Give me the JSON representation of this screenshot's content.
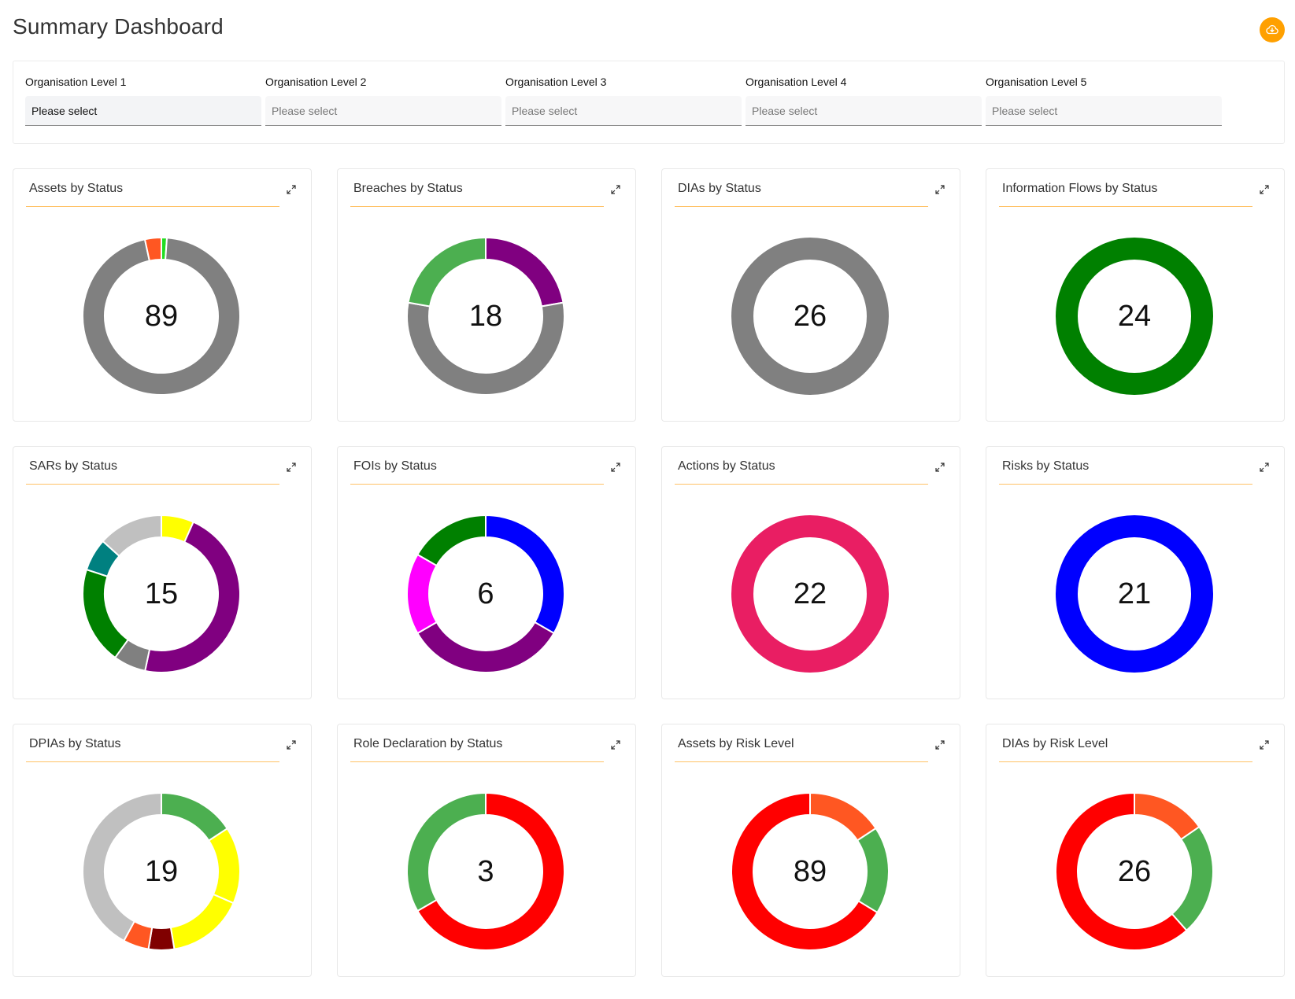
{
  "header": {
    "title": "Summary Dashboard",
    "export_icon": "cloud-download-icon",
    "accent_color": "#ffa000"
  },
  "filters": [
    {
      "label": "Organisation  Level 1",
      "value": "Please select",
      "active": true
    },
    {
      "label": "Organisation  Level 2",
      "value": "Please select",
      "active": false
    },
    {
      "label": "Organisation  Level 3",
      "value": "Please select",
      "active": false
    },
    {
      "label": "Organisation  Level 4",
      "value": "Please select",
      "active": false
    },
    {
      "label": "Organisation  Level 5",
      "value": "Please select",
      "active": false
    }
  ],
  "chart_data": [
    {
      "type": "pie",
      "title": "Assets by Status",
      "total": "89",
      "slices": [
        {
          "value": 1,
          "color": "#22dd22"
        },
        {
          "value": 85,
          "color": "#808080"
        },
        {
          "value": 3,
          "color": "#ff5722"
        }
      ]
    },
    {
      "type": "pie",
      "title": "Breaches by Status",
      "total": "18",
      "slices": [
        {
          "value": 4,
          "color": "#800080"
        },
        {
          "value": 10,
          "color": "#808080"
        },
        {
          "value": 4,
          "color": "#4caf50"
        }
      ]
    },
    {
      "type": "pie",
      "title": "DIAs by Status",
      "total": "26",
      "slices": [
        {
          "value": 26,
          "color": "#808080"
        }
      ]
    },
    {
      "type": "pie",
      "title": "Information Flows by Status",
      "total": "24",
      "slices": [
        {
          "value": 24,
          "color": "#008000"
        }
      ]
    },
    {
      "type": "pie",
      "title": "SARs by Status",
      "total": "15",
      "slices": [
        {
          "value": 1,
          "color": "#ffff00"
        },
        {
          "value": 7,
          "color": "#800080"
        },
        {
          "value": 1,
          "color": "#808080"
        },
        {
          "value": 3,
          "color": "#008000"
        },
        {
          "value": 1,
          "color": "#008080"
        },
        {
          "value": 2,
          "color": "#c0c0c0"
        }
      ]
    },
    {
      "type": "pie",
      "title": "FOIs by Status",
      "total": "6",
      "slices": [
        {
          "value": 2,
          "color": "#0000ff"
        },
        {
          "value": 2,
          "color": "#800080"
        },
        {
          "value": 1,
          "color": "#ff00ff"
        },
        {
          "value": 1,
          "color": "#008000"
        }
      ]
    },
    {
      "type": "pie",
      "title": "Actions by Status",
      "total": "22",
      "slices": [
        {
          "value": 22,
          "color": "#e91e63"
        }
      ]
    },
    {
      "type": "pie",
      "title": "Risks by Status",
      "total": "21",
      "slices": [
        {
          "value": 21,
          "color": "#0000ff"
        }
      ]
    },
    {
      "type": "pie",
      "title": "DPIAs by Status",
      "total": "19",
      "slices": [
        {
          "value": 3,
          "color": "#4caf50"
        },
        {
          "value": 3,
          "color": "#ffff00"
        },
        {
          "value": 3,
          "color": "#ffff00"
        },
        {
          "value": 1,
          "color": "#800000"
        },
        {
          "value": 1,
          "color": "#ff5722"
        },
        {
          "value": 8,
          "color": "#c0c0c0"
        }
      ]
    },
    {
      "type": "pie",
      "title": "Role Declaration by Status",
      "total": "3",
      "slices": [
        {
          "value": 2,
          "color": "#ff0000"
        },
        {
          "value": 1,
          "color": "#4caf50"
        }
      ]
    },
    {
      "type": "pie",
      "title": "Assets by Risk Level",
      "total": "89",
      "slices": [
        {
          "value": 14,
          "color": "#ff5722"
        },
        {
          "value": 16,
          "color": "#4caf50"
        },
        {
          "value": 59,
          "color": "#ff0000"
        }
      ]
    },
    {
      "type": "pie",
      "title": "DIAs by Risk Level",
      "total": "26",
      "slices": [
        {
          "value": 4,
          "color": "#ff5722"
        },
        {
          "value": 6,
          "color": "#4caf50"
        },
        {
          "value": 16,
          "color": "#ff0000"
        }
      ]
    }
  ]
}
